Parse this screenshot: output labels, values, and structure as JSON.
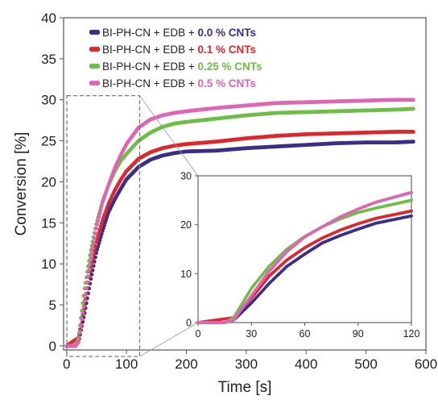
{
  "chart_data": {
    "type": "scatter",
    "xlabel": "Time [s]",
    "ylabel": "Conversion [%]",
    "xlim": [
      -5,
      600
    ],
    "ylim": [
      -0.5,
      40
    ],
    "xticks": [
      "0",
      "100",
      "200",
      "300",
      "400",
      "500",
      "600"
    ],
    "yticks": [
      "0",
      "5",
      "10",
      "15",
      "20",
      "25",
      "30",
      "35",
      "40"
    ],
    "legend_position": "top-left",
    "series": [
      {
        "name": "BI-PH-CN + EDB + ",
        "highlight": "0.0 % CNTs",
        "color": "#3b2e8a",
        "x": [
          0,
          15,
          20,
          30,
          40,
          50,
          60,
          70,
          80,
          90,
          100,
          120,
          140,
          160,
          180,
          200,
          250,
          300,
          350,
          400,
          450,
          500,
          550,
          580
        ],
        "y": [
          0,
          0,
          0.5,
          4,
          8,
          11.5,
          14,
          16.3,
          17.8,
          19.1,
          20.3,
          21.8,
          22.7,
          23.2,
          23.5,
          23.7,
          23.8,
          24.1,
          24.3,
          24.5,
          24.7,
          24.8,
          24.8,
          24.9
        ]
      },
      {
        "name": "BI-PH-CN + EDB + ",
        "highlight": "0.1 % CNTs",
        "color": "#e0262b",
        "x": [
          0,
          10,
          20,
          30,
          40,
          50,
          60,
          70,
          80,
          90,
          100,
          120,
          140,
          160,
          180,
          200,
          250,
          300,
          350,
          400,
          450,
          500,
          550,
          580
        ],
        "y": [
          0,
          0.5,
          1,
          5,
          9.5,
          12.8,
          15.3,
          17.3,
          18.9,
          20.2,
          21.3,
          22.8,
          23.6,
          24.1,
          24.4,
          24.6,
          24.9,
          25.3,
          25.6,
          25.8,
          25.9,
          26,
          26.1,
          26.1
        ]
      },
      {
        "name": "BI-PH-CN + EDB + ",
        "highlight": "0.25 % CNTs",
        "color": "#6dbe45",
        "x": [
          0,
          15,
          20,
          30,
          40,
          50,
          60,
          70,
          80,
          90,
          100,
          120,
          140,
          160,
          180,
          200,
          250,
          300,
          350,
          400,
          450,
          500,
          550,
          580
        ],
        "y": [
          0,
          0,
          1,
          7,
          11.5,
          15,
          17.6,
          19.6,
          21.2,
          22.5,
          23.4,
          25,
          26,
          26.7,
          27.1,
          27.3,
          27.7,
          28.1,
          28.4,
          28.5,
          28.6,
          28.7,
          28.8,
          28.9
        ]
      },
      {
        "name": "BI-PH-CN + EDB + ",
        "highlight": "0.5 % CNTs",
        "color": "#e064b4",
        "x": [
          0,
          15,
          20,
          30,
          40,
          50,
          60,
          70,
          80,
          90,
          100,
          120,
          140,
          160,
          180,
          200,
          250,
          300,
          350,
          400,
          450,
          500,
          550,
          580
        ],
        "y": [
          0,
          0,
          0.5,
          5.5,
          10.5,
          14.5,
          17.5,
          19.6,
          21.6,
          23.2,
          24.6,
          26.6,
          27.6,
          28.1,
          28.4,
          28.6,
          29,
          29.3,
          29.6,
          29.7,
          29.8,
          29.9,
          30,
          30
        ]
      }
    ],
    "zoom_box": {
      "x": [
        -5,
        122
      ],
      "y": [
        -0.5,
        30.5
      ]
    },
    "inset": {
      "xlim": [
        0,
        120
      ],
      "ylim": [
        0,
        30
      ],
      "xticks": [
        "0",
        "30",
        "60",
        "90",
        "120"
      ],
      "yticks": [
        "0",
        "10",
        "20",
        "30"
      ]
    }
  }
}
